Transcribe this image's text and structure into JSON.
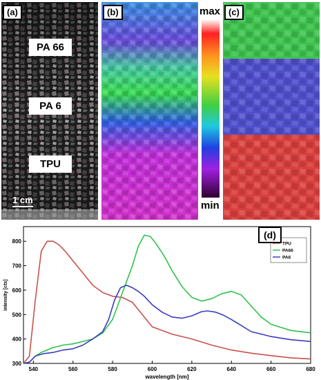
{
  "panels": {
    "a": {
      "tag": "(a)",
      "labels": [
        "PA 66",
        "PA 6",
        "TPU"
      ],
      "scalebar": "1 cm"
    },
    "b": {
      "tag": "(b)",
      "scale_max": "max",
      "scale_min": "min"
    },
    "c": {
      "tag": "(c)"
    },
    "d": {
      "tag": "(d)"
    }
  },
  "colors": {
    "tpu": "#c8504a",
    "pa66": "#2ec24a",
    "pa6": "#3a3ac0"
  },
  "chart_data": {
    "type": "line",
    "xlabel": "wavelength [nm]",
    "ylabel": "intensity [cts]",
    "xlim": [
      535,
      680
    ],
    "ylim": [
      300,
      860
    ],
    "xticks": [
      540,
      560,
      580,
      600,
      620,
      640,
      660,
      680
    ],
    "yticks": [
      300,
      400,
      500,
      600,
      700,
      800
    ],
    "legend_position": "top-right",
    "series": [
      {
        "name": "TPU",
        "color": "#c8504a",
        "x": [
          535,
          538,
          541,
          544,
          547,
          550,
          553,
          556,
          560,
          565,
          570,
          575,
          580,
          585,
          590,
          595,
          600,
          610,
          620,
          630,
          640,
          650,
          660,
          670,
          680
        ],
        "y": [
          300,
          330,
          560,
          760,
          800,
          800,
          785,
          760,
          720,
          670,
          620,
          590,
          575,
          570,
          550,
          500,
          450,
          420,
          400,
          375,
          355,
          342,
          332,
          323,
          318
        ]
      },
      {
        "name": "PA66",
        "color": "#2ec24a",
        "x": [
          535,
          538,
          541,
          544,
          547,
          550,
          555,
          560,
          565,
          570,
          575,
          580,
          585,
          590,
          593,
          596,
          599,
          602,
          606,
          610,
          615,
          620,
          625,
          630,
          635,
          640,
          645,
          650,
          655,
          660,
          670,
          680
        ],
        "y": [
          300,
          305,
          330,
          345,
          355,
          365,
          375,
          380,
          390,
          400,
          425,
          480,
          590,
          700,
          780,
          825,
          820,
          790,
          740,
          680,
          615,
          570,
          555,
          565,
          585,
          595,
          580,
          535,
          490,
          460,
          435,
          425
        ]
      },
      {
        "name": "PA6",
        "color": "#3a3ac0",
        "x": [
          535,
          538,
          541,
          545,
          550,
          555,
          560,
          565,
          570,
          575,
          578,
          581,
          584,
          587,
          590,
          593,
          596,
          600,
          605,
          610,
          615,
          620,
          625,
          628,
          632,
          636,
          640,
          645,
          650,
          660,
          670,
          680
        ],
        "y": [
          300,
          305,
          330,
          340,
          345,
          355,
          360,
          375,
          400,
          430,
          480,
          560,
          610,
          620,
          610,
          595,
          575,
          540,
          510,
          490,
          485,
          495,
          512,
          515,
          510,
          497,
          480,
          455,
          430,
          410,
          397,
          390
        ]
      }
    ]
  }
}
